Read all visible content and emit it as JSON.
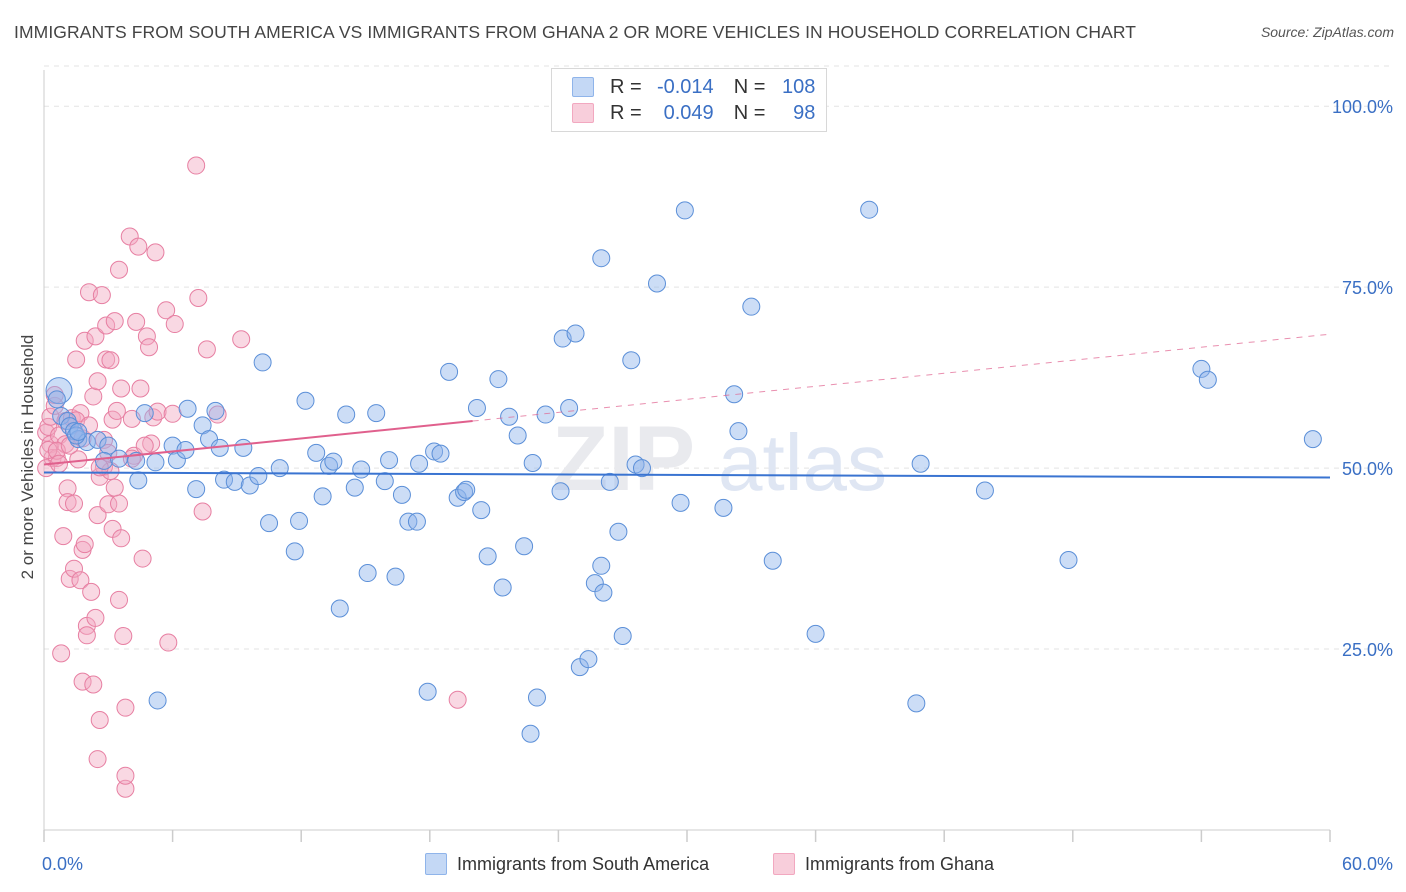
{
  "title": "IMMIGRANTS FROM SOUTH AMERICA VS IMMIGRANTS FROM GHANA 2 OR MORE VEHICLES IN HOUSEHOLD CORRELATION CHART",
  "source": "Source: ZipAtlas.com",
  "watermark": {
    "zip": "ZIP",
    "atlas": "atlas"
  },
  "legend": {
    "r_label": "R =",
    "n_label": "N =",
    "rows": [
      {
        "name": "Immigrants from South America",
        "r": "-0.014",
        "n": "108",
        "color": "#8fb4ea"
      },
      {
        "name": "Immigrants from Ghana",
        "r": "0.049",
        "n": "98",
        "color": "#f2a8c0"
      }
    ]
  },
  "chart_data": {
    "type": "scatter",
    "title": "IMMIGRANTS FROM SOUTH AMERICA VS IMMIGRANTS FROM GHANA 2 OR MORE VEHICLES IN HOUSEHOLD CORRELATION CHART",
    "xlabel": "",
    "ylabel": "2 or more Vehicles in Household",
    "xlim": [
      0,
      60
    ],
    "ylim": [
      0,
      105
    ],
    "x_tick_labels": [
      "0.0%",
      "60.0%"
    ],
    "y_ticks": [
      25,
      50,
      75,
      100
    ],
    "y_tick_labels": [
      "25.0%",
      "50.0%",
      "75.0%",
      "100.0%"
    ],
    "grid": true,
    "series": [
      {
        "name": "Immigrants from South America",
        "color": "#8fb4ea",
        "stroke": "#5b8fd8",
        "trend": {
          "x0": 0,
          "y0": 49.4,
          "x1": 60,
          "y1": 48.7,
          "color": "#3a74d1"
        },
        "points": [
          [
            0.7,
            60.7
          ],
          [
            0.6,
            59.5
          ],
          [
            0.8,
            57.2
          ],
          [
            1.1,
            56.5
          ],
          [
            1.2,
            55.8
          ],
          [
            1.4,
            55.1
          ],
          [
            1.6,
            54.0
          ],
          [
            2.0,
            53.6
          ],
          [
            2.5,
            53.9
          ],
          [
            3.0,
            53.1
          ],
          [
            2.8,
            51.0
          ],
          [
            3.5,
            51.3
          ],
          [
            4.4,
            48.3
          ],
          [
            4.7,
            57.6
          ],
          [
            5.2,
            50.8
          ],
          [
            6.0,
            53.1
          ],
          [
            6.2,
            51.1
          ],
          [
            6.6,
            52.5
          ],
          [
            6.7,
            58.2
          ],
          [
            7.1,
            47.1
          ],
          [
            7.4,
            55.9
          ],
          [
            7.7,
            54.0
          ],
          [
            8.0,
            57.9
          ],
          [
            8.2,
            52.8
          ],
          [
            8.4,
            48.4
          ],
          [
            8.9,
            48.1
          ],
          [
            9.3,
            52.8
          ],
          [
            9.6,
            47.6
          ],
          [
            10.0,
            48.9
          ],
          [
            10.2,
            64.6
          ],
          [
            10.5,
            42.4
          ],
          [
            11.0,
            50.0
          ],
          [
            11.7,
            38.5
          ],
          [
            11.9,
            42.7
          ],
          [
            12.2,
            59.3
          ],
          [
            12.7,
            52.1
          ],
          [
            13.0,
            46.1
          ],
          [
            13.3,
            50.3
          ],
          [
            13.5,
            50.9
          ],
          [
            13.8,
            30.6
          ],
          [
            14.1,
            57.4
          ],
          [
            14.5,
            47.3
          ],
          [
            14.8,
            49.8
          ],
          [
            15.1,
            35.5
          ],
          [
            15.5,
            57.6
          ],
          [
            15.9,
            48.2
          ],
          [
            16.1,
            51.1
          ],
          [
            16.4,
            35.0
          ],
          [
            16.7,
            46.3
          ],
          [
            17.0,
            42.6
          ],
          [
            17.4,
            42.6
          ],
          [
            17.5,
            50.6
          ],
          [
            17.9,
            19.1
          ],
          [
            18.2,
            52.3
          ],
          [
            18.5,
            52.0
          ],
          [
            18.9,
            63.3
          ],
          [
            19.3,
            45.9
          ],
          [
            19.6,
            46.7
          ],
          [
            19.7,
            47.0
          ],
          [
            20.2,
            58.3
          ],
          [
            20.4,
            44.2
          ],
          [
            20.7,
            37.8
          ],
          [
            21.2,
            62.3
          ],
          [
            21.4,
            33.5
          ],
          [
            21.7,
            57.1
          ],
          [
            22.1,
            54.5
          ],
          [
            22.4,
            39.2
          ],
          [
            22.7,
            13.3
          ],
          [
            22.8,
            50.7
          ],
          [
            23.0,
            18.3
          ],
          [
            23.4,
            57.4
          ],
          [
            24.1,
            46.8
          ],
          [
            24.2,
            67.9
          ],
          [
            24.5,
            58.3
          ],
          [
            24.8,
            68.6
          ],
          [
            25.0,
            22.5
          ],
          [
            25.4,
            23.6
          ],
          [
            25.7,
            34.1
          ],
          [
            26.0,
            79.0
          ],
          [
            26.0,
            36.5
          ],
          [
            26.1,
            32.8
          ],
          [
            26.4,
            48.1
          ],
          [
            26.8,
            41.2
          ],
          [
            27.0,
            26.8
          ],
          [
            27.4,
            64.9
          ],
          [
            27.6,
            50.5
          ],
          [
            27.9,
            50.0
          ],
          [
            28.6,
            75.5
          ],
          [
            29.7,
            45.2
          ],
          [
            29.9,
            85.6
          ],
          [
            31.7,
            44.5
          ],
          [
            32.2,
            60.2
          ],
          [
            32.4,
            55.1
          ],
          [
            33.0,
            72.3
          ],
          [
            34.0,
            37.2
          ],
          [
            36.0,
            27.1
          ],
          [
            38.5,
            85.7
          ],
          [
            40.7,
            17.5
          ],
          [
            40.9,
            50.6
          ],
          [
            43.9,
            46.9
          ],
          [
            47.8,
            37.3
          ],
          [
            54.0,
            63.7
          ],
          [
            54.3,
            62.2
          ],
          [
            59.2,
            54.0
          ],
          [
            1.5,
            54.5
          ],
          [
            1.6,
            55.0
          ],
          [
            5.3,
            17.9
          ],
          [
            4.3,
            51.0
          ]
        ]
      },
      {
        "name": "Immigrants from Ghana",
        "color": "#f2a8c0",
        "stroke": "#e77fa2",
        "trend": {
          "x0": 0,
          "y0": 50.5,
          "x1": 60,
          "y1": 68.5,
          "solid_until_x": 20,
          "color": "#e0608d"
        },
        "points": [
          [
            0.1,
            54.9
          ],
          [
            0.2,
            55.7
          ],
          [
            0.3,
            57.1
          ],
          [
            0.3,
            53.3
          ],
          [
            0.4,
            51.4
          ],
          [
            0.5,
            58.6
          ],
          [
            0.5,
            60.1
          ],
          [
            0.6,
            51.4
          ],
          [
            0.7,
            54.5
          ],
          [
            0.8,
            24.4
          ],
          [
            0.9,
            40.6
          ],
          [
            1.0,
            53.3
          ],
          [
            1.0,
            56.5
          ],
          [
            1.1,
            47.2
          ],
          [
            1.1,
            45.3
          ],
          [
            1.2,
            34.7
          ],
          [
            1.3,
            56.9
          ],
          [
            1.4,
            45.1
          ],
          [
            1.4,
            36.1
          ],
          [
            1.5,
            65.0
          ],
          [
            1.6,
            51.2
          ],
          [
            1.7,
            57.6
          ],
          [
            1.7,
            34.5
          ],
          [
            1.8,
            38.7
          ],
          [
            1.8,
            20.5
          ],
          [
            1.9,
            39.5
          ],
          [
            1.9,
            67.6
          ],
          [
            2.0,
            28.2
          ],
          [
            2.0,
            26.9
          ],
          [
            2.1,
            74.3
          ],
          [
            2.2,
            32.9
          ],
          [
            2.3,
            59.9
          ],
          [
            2.3,
            20.1
          ],
          [
            2.4,
            68.2
          ],
          [
            2.4,
            29.3
          ],
          [
            2.5,
            43.5
          ],
          [
            2.5,
            62.0
          ],
          [
            2.5,
            9.8
          ],
          [
            2.6,
            48.8
          ],
          [
            2.6,
            15.2
          ],
          [
            2.7,
            73.9
          ],
          [
            2.8,
            50.2
          ],
          [
            2.8,
            53.9
          ],
          [
            2.9,
            69.7
          ],
          [
            2.9,
            65.0
          ],
          [
            3.0,
            45.0
          ],
          [
            3.1,
            49.6
          ],
          [
            3.1,
            64.9
          ],
          [
            3.2,
            56.7
          ],
          [
            3.2,
            41.6
          ],
          [
            3.3,
            70.3
          ],
          [
            3.4,
            57.9
          ],
          [
            3.5,
            77.4
          ],
          [
            3.5,
            45.1
          ],
          [
            3.5,
            31.8
          ],
          [
            3.6,
            61.0
          ],
          [
            3.6,
            40.3
          ],
          [
            3.7,
            26.8
          ],
          [
            3.8,
            5.7
          ],
          [
            3.8,
            7.5
          ],
          [
            3.8,
            16.9
          ],
          [
            4.0,
            82.0
          ],
          [
            4.1,
            56.8
          ],
          [
            4.2,
            51.7
          ],
          [
            4.3,
            70.2
          ],
          [
            4.4,
            80.6
          ],
          [
            4.5,
            61.0
          ],
          [
            4.6,
            37.5
          ],
          [
            4.8,
            68.2
          ],
          [
            4.9,
            66.7
          ],
          [
            5.0,
            53.4
          ],
          [
            5.1,
            57.0
          ],
          [
            5.2,
            79.8
          ],
          [
            5.3,
            57.8
          ],
          [
            5.7,
            71.8
          ],
          [
            5.8,
            25.9
          ],
          [
            6.0,
            57.5
          ],
          [
            6.1,
            69.9
          ],
          [
            7.1,
            91.8
          ],
          [
            7.2,
            73.5
          ],
          [
            7.4,
            44.0
          ],
          [
            7.6,
            66.4
          ],
          [
            8.1,
            57.4
          ],
          [
            9.2,
            67.8
          ],
          [
            19.3,
            18.0
          ],
          [
            0.1,
            50.0
          ],
          [
            0.2,
            52.5
          ],
          [
            0.6,
            52.4
          ],
          [
            0.7,
            50.6
          ],
          [
            1.2,
            53.1
          ],
          [
            1.5,
            56.6
          ],
          [
            1.8,
            54.1
          ],
          [
            2.1,
            55.9
          ],
          [
            2.6,
            50.1
          ],
          [
            3.0,
            52.1
          ],
          [
            3.3,
            47.3
          ],
          [
            4.1,
            51.3
          ],
          [
            4.7,
            53.1
          ]
        ]
      }
    ]
  }
}
